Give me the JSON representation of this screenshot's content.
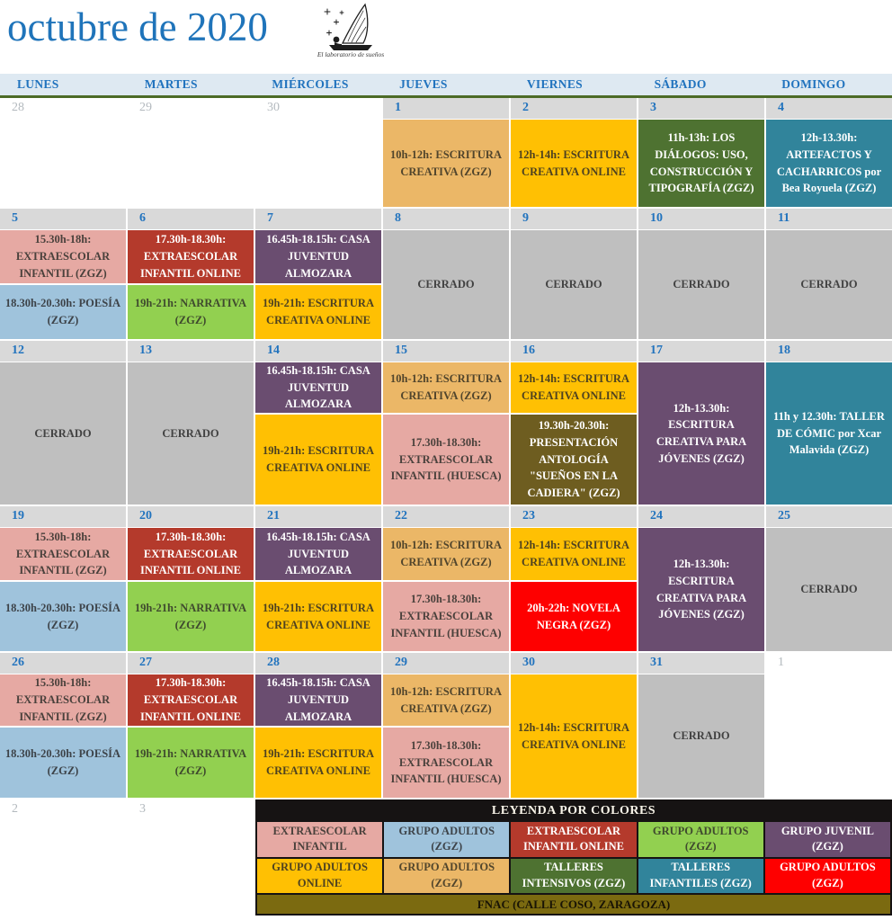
{
  "title": "octubre de 2020",
  "logo": {
    "caption": "El laboratorio de sueños"
  },
  "day_headers": [
    "LUNES",
    "MARTES",
    "MIÉRCOLES",
    "JUEVES",
    "VIERNES",
    "SÁBADO",
    "DOMINGO"
  ],
  "colors": {
    "tan": {
      "bg": "#EBB767",
      "text": "#51452C"
    },
    "gold": {
      "bg": "#FFC003",
      "text": "#4E4220"
    },
    "darkgreen": {
      "bg": "#4E7231",
      "text": "#FFFFFF"
    },
    "teal": {
      "bg": "#31849B",
      "text": "#FFFFFF"
    },
    "pink": {
      "bg": "#E6A9A3",
      "text": "#4A413C"
    },
    "darkred": {
      "bg": "#B43A2C",
      "text": "#FFFFFF"
    },
    "lightblue": {
      "bg": "#9FC3DC",
      "text": "#3D4349"
    },
    "green": {
      "bg": "#92D050",
      "text": "#3F4A2E"
    },
    "purple": {
      "bg": "#6A4D70",
      "text": "#FFFFFF"
    },
    "gray": {
      "bg": "#BFBFBF",
      "text": "#424242"
    },
    "red": {
      "bg": "#FE0000",
      "text": "#FFFFFF"
    },
    "olive": {
      "bg": "#6E5D20",
      "text": "#FFFFFF"
    },
    "accent_blue": "#2173BE",
    "out_month_gray": "#B3B9BE",
    "header_band": "#DEE9F2",
    "divider_green": "#4C6B27"
  },
  "weeks": [
    [
      {
        "num": "28",
        "out": true,
        "events": []
      },
      {
        "num": "29",
        "out": true,
        "events": []
      },
      {
        "num": "30",
        "out": true,
        "events": []
      },
      {
        "num": "1",
        "events": [
          {
            "text": "10h-12h: ESCRITURA CREATIVA (ZGZ)",
            "color": "tan"
          }
        ]
      },
      {
        "num": "2",
        "events": [
          {
            "text": "12h-14h: ESCRITURA CREATIVA ONLINE",
            "color": "gold"
          }
        ]
      },
      {
        "num": "3",
        "events": [
          {
            "text": "11h-13h: LOS DIÁLOGOS: USO, CONSTRUCCIÓN Y TIPOGRAFÍA (ZGZ)",
            "color": "darkgreen"
          }
        ]
      },
      {
        "num": "4",
        "events": [
          {
            "text": "12h-13.30h: ARTEFACTOS Y CACHARRICOS por Bea Royuela (ZGZ)",
            "color": "teal"
          }
        ]
      }
    ],
    [
      {
        "num": "5",
        "events": [
          {
            "text": "15.30h-18h: EXTRAESCOLAR INFANTIL (ZGZ)",
            "color": "pink"
          },
          {
            "text": "18.30h-20.30h: POESÍA (ZGZ)",
            "color": "lightblue"
          }
        ]
      },
      {
        "num": "6",
        "events": [
          {
            "text": "17.30h-18.30h: EXTRAESCOLAR INFANTIL ONLINE",
            "color": "darkred"
          },
          {
            "text": "19h-21h: NARRATIVA (ZGZ)",
            "color": "green"
          }
        ]
      },
      {
        "num": "7",
        "events": [
          {
            "text": "16.45h-18.15h: CASA JUVENTUD ALMOZARA",
            "color": "purple"
          },
          {
            "text": "19h-21h: ESCRITURA CREATIVA ONLINE",
            "color": "gold"
          }
        ]
      },
      {
        "num": "8",
        "events": [
          {
            "text": "CERRADO",
            "color": "gray"
          }
        ]
      },
      {
        "num": "9",
        "events": [
          {
            "text": "CERRADO",
            "color": "gray"
          }
        ]
      },
      {
        "num": "10",
        "events": [
          {
            "text": "CERRADO",
            "color": "gray"
          }
        ]
      },
      {
        "num": "11",
        "events": [
          {
            "text": "CERRADO",
            "color": "gray"
          }
        ]
      }
    ],
    [
      {
        "num": "12",
        "events": [
          {
            "text": "CERRADO",
            "color": "gray"
          }
        ]
      },
      {
        "num": "13",
        "events": [
          {
            "text": "CERRADO",
            "color": "gray"
          }
        ]
      },
      {
        "num": "14",
        "events": [
          {
            "text": "16.45h-18.15h: CASA JUVENTUD ALMOZARA",
            "color": "purple"
          },
          {
            "text": "19h-21h: ESCRITURA CREATIVA ONLINE",
            "color": "gold"
          }
        ]
      },
      {
        "num": "15",
        "events": [
          {
            "text": "10h-12h: ESCRITURA CREATIVA (ZGZ)",
            "color": "tan"
          },
          {
            "text": "17.30h-18.30h: EXTRAESCOLAR INFANTIL (HUESCA)",
            "color": "pink"
          }
        ]
      },
      {
        "num": "16",
        "events": [
          {
            "text": "12h-14h: ESCRITURA CREATIVA ONLINE",
            "color": "gold"
          },
          {
            "text": "19.30h-20.30h: PRESENTACIÓN ANTOLOGÍA \"SUEÑOS EN LA CADIERA\" (ZGZ)",
            "color": "olive"
          }
        ]
      },
      {
        "num": "17",
        "events": [
          {
            "text": "12h-13.30h: ESCRITURA CREATIVA PARA JÓVENES (ZGZ)",
            "color": "purple"
          }
        ]
      },
      {
        "num": "18",
        "events": [
          {
            "text": "11h y 12.30h: TALLER DE CÓMIC por Xcar Malavida (ZGZ)",
            "color": "teal"
          }
        ]
      }
    ],
    [
      {
        "num": "19",
        "events": [
          {
            "text": "15.30h-18h: EXTRAESCOLAR INFANTIL (ZGZ)",
            "color": "pink"
          },
          {
            "text": "18.30h-20.30h: POESÍA (ZGZ)",
            "color": "lightblue"
          }
        ]
      },
      {
        "num": "20",
        "events": [
          {
            "text": "17.30h-18.30h: EXTRAESCOLAR INFANTIL ONLINE",
            "color": "darkred"
          },
          {
            "text": "19h-21h: NARRATIVA (ZGZ)",
            "color": "green"
          }
        ]
      },
      {
        "num": "21",
        "events": [
          {
            "text": "16.45h-18.15h: CASA JUVENTUD ALMOZARA",
            "color": "purple"
          },
          {
            "text": "19h-21h: ESCRITURA CREATIVA ONLINE",
            "color": "gold"
          }
        ]
      },
      {
        "num": "22",
        "events": [
          {
            "text": "10h-12h: ESCRITURA CREATIVA (ZGZ)",
            "color": "tan"
          },
          {
            "text": "17.30h-18.30h: EXTRAESCOLAR INFANTIL (HUESCA)",
            "color": "pink"
          }
        ]
      },
      {
        "num": "23",
        "events": [
          {
            "text": "12h-14h: ESCRITURA CREATIVA ONLINE",
            "color": "gold"
          },
          {
            "text": "20h-22h: NOVELA NEGRA (ZGZ)",
            "color": "red"
          }
        ]
      },
      {
        "num": "24",
        "events": [
          {
            "text": "12h-13.30h: ESCRITURA CREATIVA PARA JÓVENES (ZGZ)",
            "color": "purple"
          }
        ]
      },
      {
        "num": "25",
        "events": [
          {
            "text": "CERRADO",
            "color": "gray"
          }
        ]
      }
    ],
    [
      {
        "num": "26",
        "events": [
          {
            "text": "15.30h-18h: EXTRAESCOLAR INFANTIL (ZGZ)",
            "color": "pink"
          },
          {
            "text": "18.30h-20.30h: POESÍA (ZGZ)",
            "color": "lightblue"
          }
        ]
      },
      {
        "num": "27",
        "events": [
          {
            "text": "17.30h-18.30h: EXTRAESCOLAR INFANTIL ONLINE",
            "color": "darkred"
          },
          {
            "text": "19h-21h: NARRATIVA (ZGZ)",
            "color": "green"
          }
        ]
      },
      {
        "num": "28",
        "events": [
          {
            "text": "16.45h-18.15h: CASA JUVENTUD ALMOZARA",
            "color": "purple"
          },
          {
            "text": "19h-21h: ESCRITURA CREATIVA ONLINE",
            "color": "gold"
          }
        ]
      },
      {
        "num": "29",
        "events": [
          {
            "text": "10h-12h: ESCRITURA CREATIVA (ZGZ)",
            "color": "tan"
          },
          {
            "text": "17.30h-18.30h: EXTRAESCOLAR INFANTIL (HUESCA)",
            "color": "pink"
          }
        ]
      },
      {
        "num": "30",
        "events": [
          {
            "text": "12h-14h: ESCRITURA CREATIVA ONLINE",
            "color": "gold"
          }
        ]
      },
      {
        "num": "31",
        "events": [
          {
            "text": "CERRADO",
            "color": "gray"
          }
        ]
      },
      {
        "num": "1",
        "out": true,
        "events": []
      }
    ]
  ],
  "bottom_days": [
    "2",
    "3"
  ],
  "legend": {
    "title": "LEYENDA POR COLORES",
    "footer": "FNAC (CALLE COSO, ZARAGOZA)",
    "items": [
      {
        "label": "EXTRAESCOLAR INFANTIL",
        "color": "pink"
      },
      {
        "label": "GRUPO ADULTOS (ZGZ)",
        "color": "lightblue"
      },
      {
        "label": "EXTRAESCOLAR INFANTIL ONLINE",
        "color": "darkred"
      },
      {
        "label": "GRUPO ADULTOS (ZGZ)",
        "color": "green"
      },
      {
        "label": "GRUPO JUVENIL (ZGZ)",
        "color": "purple"
      },
      {
        "label": "GRUPO ADULTOS ONLINE",
        "color": "gold"
      },
      {
        "label": "GRUPO ADULTOS (ZGZ)",
        "color": "tan"
      },
      {
        "label": "TALLERES INTENSIVOS (ZGZ)",
        "color": "darkgreen"
      },
      {
        "label": "TALLERES INFANTILES (ZGZ)",
        "color": "teal"
      },
      {
        "label": "GRUPO ADULTOS (ZGZ)",
        "color": "red"
      }
    ]
  }
}
